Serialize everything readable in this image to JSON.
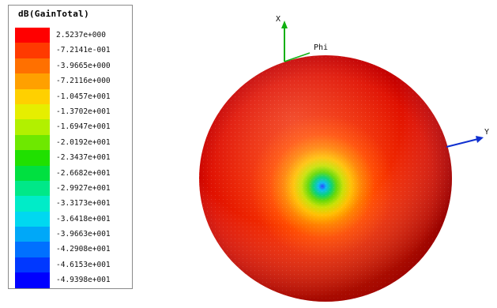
{
  "legend": {
    "title": "dB(GainTotal)",
    "entries": [
      {
        "label": "2.5237e+000",
        "color": "#ff0000"
      },
      {
        "label": "-7.2141e-001",
        "color": "#ff3a00"
      },
      {
        "label": "-3.9665e+000",
        "color": "#ff7000"
      },
      {
        "label": "-7.2116e+000",
        "color": "#ffa000"
      },
      {
        "label": "-1.0457e+001",
        "color": "#ffd000"
      },
      {
        "label": "-1.3702e+001",
        "color": "#e6ee00"
      },
      {
        "label": "-1.6947e+001",
        "color": "#b2f000"
      },
      {
        "label": "-2.0192e+001",
        "color": "#6ee800"
      },
      {
        "label": "-2.3437e+001",
        "color": "#20e000"
      },
      {
        "label": "-2.6682e+001",
        "color": "#00e040"
      },
      {
        "label": "-2.9927e+001",
        "color": "#00e888"
      },
      {
        "label": "-3.3173e+001",
        "color": "#00ecc8"
      },
      {
        "label": "-3.6418e+001",
        "color": "#00d8f0"
      },
      {
        "label": "-3.9663e+001",
        "color": "#00a8f8"
      },
      {
        "label": "-4.2908e+001",
        "color": "#0070ff"
      },
      {
        "label": "-4.6153e+001",
        "color": "#0038ff"
      },
      {
        "label": "-4.9398e+001",
        "color": "#0000ff"
      }
    ]
  },
  "axes": {
    "x_label": "X",
    "y_label": "Y",
    "phi_label": "Phi",
    "x_color": "#10b010",
    "y_color": "#1030d0"
  }
}
